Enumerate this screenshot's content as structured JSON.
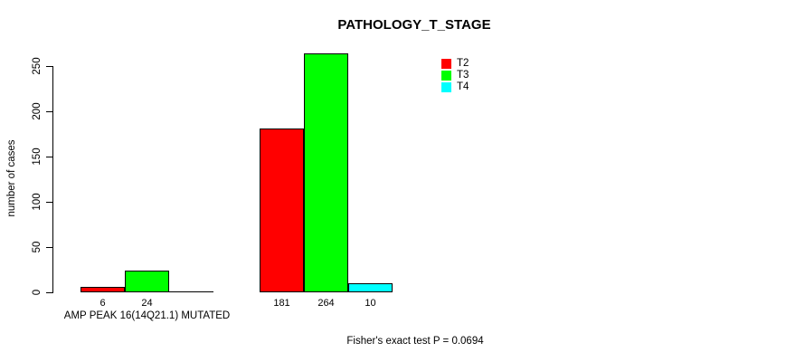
{
  "chart_data": {
    "type": "bar",
    "title": "PATHOLOGY_T_STAGE",
    "ylabel": "number of cases",
    "xlabel": "",
    "y_ticks": [
      0,
      50,
      100,
      150,
      200,
      250
    ],
    "ylim": [
      0,
      264
    ],
    "grid": false,
    "legend_position": "top-right",
    "categories": [
      "AMP PEAK 16(14Q21.1) MUTATED",
      ""
    ],
    "series": [
      {
        "name": "T2",
        "color": "#ff0000",
        "values": [
          6,
          181
        ]
      },
      {
        "name": "T3",
        "color": "#00ff00",
        "values": [
          24,
          264
        ]
      },
      {
        "name": "T4",
        "color": "#00ffff",
        "values": [
          0,
          10
        ]
      }
    ],
    "bar_labels": [
      [
        "6",
        "24",
        ""
      ],
      [
        "181",
        "264",
        "10"
      ]
    ],
    "annotation": "Fisher's exact test P = 0.0694"
  }
}
